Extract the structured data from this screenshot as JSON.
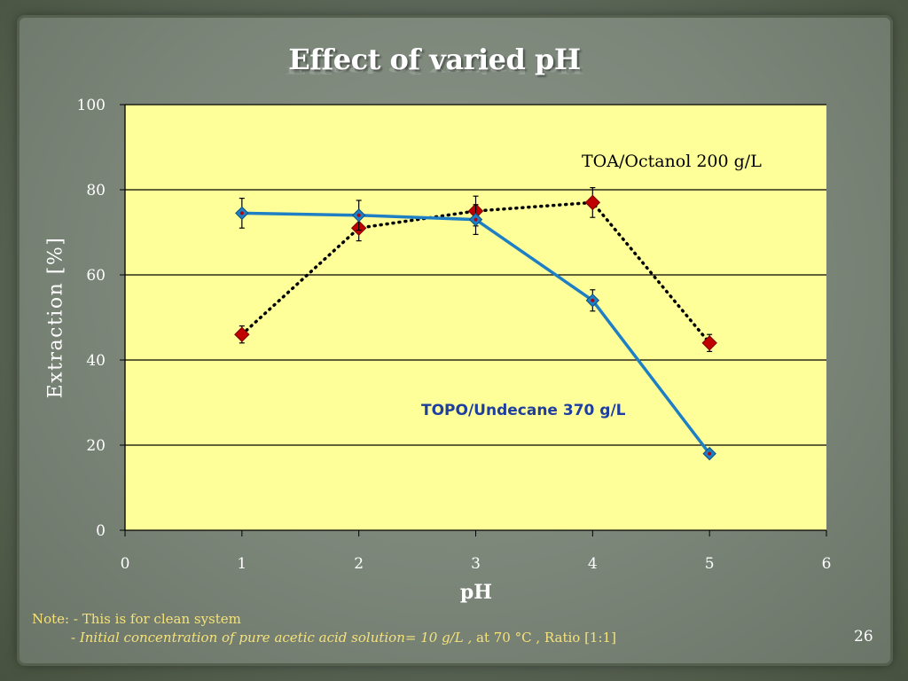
{
  "slide": {
    "title": "Effect of varied pH",
    "page_number": "26",
    "note": {
      "line1": "Note: - This is for clean system",
      "line2_prefix": "- ",
      "line2_italic": "Initial concentration of pure acetic acid solution= 10 g/L ,",
      "line2_rest": " at 70 °C , Ratio [1:1]"
    }
  },
  "chart_data": {
    "type": "line",
    "xlabel": "pH",
    "ylabel": "Extraction [%]",
    "xlim": [
      0,
      6
    ],
    "ylim": [
      0,
      100
    ],
    "x_ticks": [
      0,
      1,
      2,
      3,
      4,
      5,
      6
    ],
    "y_ticks": [
      0,
      20,
      40,
      60,
      80,
      100
    ],
    "grid": "horizontal",
    "plot_background": "#ffff99",
    "series": [
      {
        "name": "TOPO/Undecane 370 g/L",
        "style": "solid",
        "color": "#1f7fc4",
        "marker_color": "#1f7fc4",
        "x": [
          1,
          2,
          3,
          4,
          5
        ],
        "y": [
          74.5,
          74,
          73,
          54,
          18
        ],
        "err": [
          3.5,
          3.5,
          3.5,
          2.5,
          0.5
        ]
      },
      {
        "name": "TOA/Octanol 200 g/L",
        "style": "dotted",
        "color": "#000000",
        "marker_color": "#c00000",
        "x": [
          1,
          2,
          3,
          4,
          5
        ],
        "y": [
          46,
          71,
          75,
          77,
          44
        ],
        "err": [
          2,
          3,
          3.5,
          3.5,
          2
        ]
      }
    ],
    "annotations": [
      "TOA/Octanol 200 g/L",
      "TOPO/Undecane 370 g/L"
    ]
  }
}
